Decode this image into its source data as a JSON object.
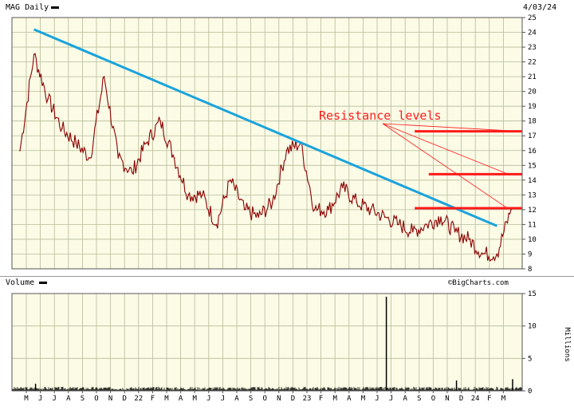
{
  "header": {
    "title": "MAG Daily",
    "date": "4/03/24"
  },
  "volume_header": {
    "title": "Volume"
  },
  "credit": "©BigCharts.com",
  "colors": {
    "background": "#fbfbe6",
    "grid": "#b8bc9a",
    "trendline": "#1aa3dc",
    "resistance": "#ff1a1a",
    "price": "#8b0000",
    "volume": "#000000"
  },
  "chart_data": [
    {
      "type": "line",
      "title": "MAG Daily",
      "x_tick_labels": [
        "M",
        "J",
        "J",
        "A",
        "S",
        "O",
        "N",
        "D",
        "22",
        "F",
        "M",
        "A",
        "M",
        "J",
        "J",
        "A",
        "S",
        "O",
        "N",
        "D",
        "23",
        "F",
        "M",
        "A",
        "M",
        "J",
        "J",
        "A",
        "S",
        "O",
        "N",
        "D",
        "24",
        "F",
        "M"
      ],
      "y_ticks": [
        8,
        9,
        10,
        11,
        12,
        13,
        14,
        15,
        16,
        17,
        18,
        19,
        20,
        21,
        22,
        23,
        24,
        25
      ],
      "ylim": [
        8,
        25
      ],
      "grid": true,
      "series": [
        {
          "name": "",
          "x": [
            "2021-05",
            "2021-06",
            "2021-07",
            "2021-08",
            "2021-09",
            "2021-10",
            "2021-11",
            "2021-12",
            "2022-01",
            "2022-02",
            "2022-03",
            "2022-04",
            "2022-05",
            "2022-06",
            "2022-07",
            "2022-08",
            "2022-09",
            "2022-10",
            "2022-11",
            "2022-12",
            "2023-01",
            "2023-02",
            "2023-03",
            "2023-04",
            "2023-05",
            "2023-06",
            "2023-07",
            "2023-08",
            "2023-09",
            "2023-10",
            "2023-11",
            "2023-12",
            "2024-01",
            "2024-02",
            "2024-03",
            "2024-04"
          ],
          "y": [
            16.0,
            22.5,
            19.5,
            17.5,
            16.5,
            15.5,
            21.0,
            15.5,
            14.5,
            16.5,
            18.0,
            15.5,
            13.0,
            13.0,
            11.0,
            14.0,
            12.0,
            11.5,
            12.5,
            16.0,
            16.5,
            12.0,
            12.0,
            13.5,
            12.5,
            12.0,
            11.5,
            11.0,
            10.5,
            11.0,
            11.5,
            10.5,
            10.0,
            9.0,
            9.0,
            12.0
          ]
        }
      ],
      "annotations": [
        {
          "text": "Resistance levels"
        }
      ],
      "trendline": {
        "from": [
          "2021-06",
          24.2
        ],
        "to": [
          "2024-03",
          10.9
        ]
      },
      "resistance_levels": [
        {
          "value": 17.3,
          "from": "2023-08",
          "to": "2024-04"
        },
        {
          "value": 14.4,
          "from": "2023-09",
          "to": "2024-04"
        },
        {
          "value": 12.1,
          "from": "2023-08",
          "to": "2024-04"
        }
      ]
    },
    {
      "type": "bar",
      "title": "Volume",
      "ylabel": "Millions",
      "y_ticks": [
        0,
        5,
        10,
        15
      ],
      "ylim": [
        0,
        15
      ],
      "grid": true,
      "baseline": 0.35,
      "spikes": [
        {
          "x": "2023-07",
          "value": 14.5
        },
        {
          "x": "2023-12",
          "value": 1.6
        },
        {
          "x": "2021-06",
          "value": 1.1
        },
        {
          "x": "2024-04",
          "value": 1.8
        }
      ]
    }
  ]
}
